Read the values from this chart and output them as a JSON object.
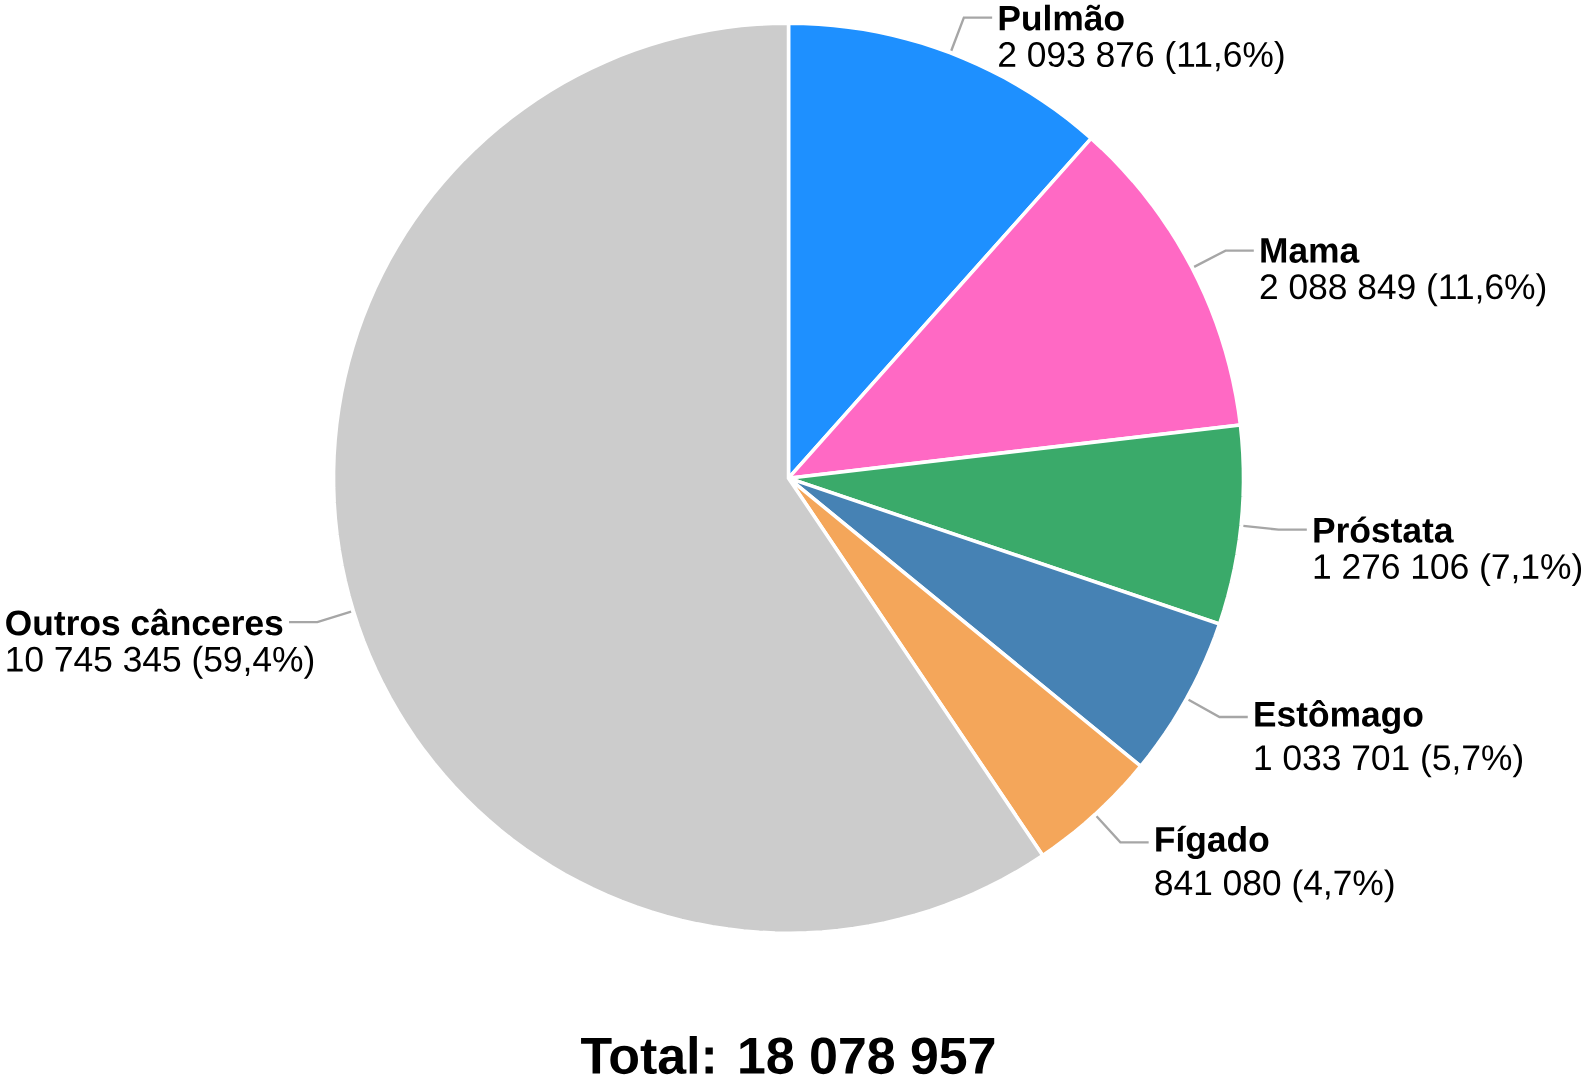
{
  "chart_data": {
    "type": "pie",
    "categories": [
      "Pulmão",
      "Mama",
      "Próstata",
      "Estômago",
      "Fígado",
      "Outros cânceres"
    ],
    "values": [
      2093876,
      2088849,
      1276106,
      1033701,
      841080,
      10745345
    ],
    "value_labels": [
      "2 093 876 (11,6%)",
      "2 088 849 (11,6%)",
      "1 276 106 (7,1%)",
      "1 033 701 (5,7%)",
      "841 080 (4,7%)",
      "10 745 345 (59,4%)"
    ],
    "colors": [
      "#1e90ff",
      "#ff69c4",
      "#3aaa6a",
      "#4682b4",
      "#f4a65a",
      "#cccccc"
    ],
    "annotations": [
      "Total: 18 078 957"
    ]
  }
}
